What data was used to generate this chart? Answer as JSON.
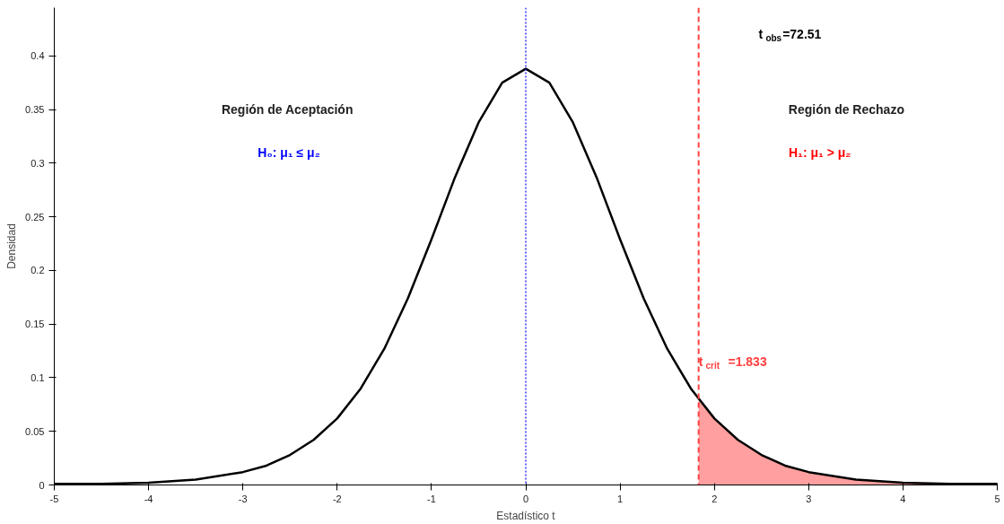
{
  "chart_data": {
    "type": "line",
    "xlabel": "Estadístico t",
    "ylabel": "Densidad",
    "series": [
      {
        "color": "#000000",
        "x": [
          -5,
          -4.5,
          -4,
          -3.5,
          -3,
          -2.75,
          -2.5,
          -2.25,
          -2,
          -1.75,
          -1.5,
          -1.25,
          -1,
          -0.75,
          -0.5,
          -0.25,
          0,
          0.25,
          0.5,
          0.75,
          1,
          1.25,
          1.5,
          1.75,
          2,
          2.25,
          2.5,
          2.75,
          3,
          3.5,
          4,
          4.5,
          5
        ],
        "values": [
          0.001,
          0.001,
          0.002,
          0.005,
          0.012,
          0.018,
          0.028,
          0.042,
          0.062,
          0.09,
          0.127,
          0.174,
          0.229,
          0.287,
          0.338,
          0.375,
          0.388,
          0.375,
          0.338,
          0.287,
          0.229,
          0.174,
          0.127,
          0.09,
          0.062,
          0.042,
          0.028,
          0.018,
          0.012,
          0.005,
          0.002,
          0.001,
          0.001
        ]
      },
      {
        "type": "area",
        "color": "#ff9f9f",
        "x": [
          1.833,
          2,
          2.25,
          2.5,
          2.75,
          3,
          3.5,
          4,
          4.5,
          5
        ],
        "values": [
          0.079,
          0.062,
          0.042,
          0.028,
          0.018,
          0.012,
          0.005,
          0.002,
          0.001,
          0.001
        ]
      }
    ],
    "xlim": [
      -5,
      5
    ],
    "ylim": [
      0,
      0.445
    ],
    "xticks": [
      -5,
      -4,
      -3,
      -2,
      -1,
      0,
      1,
      2,
      3,
      4,
      5
    ],
    "yticks": [
      0,
      0.05,
      0.1,
      0.15,
      0.2,
      0.25,
      0.3,
      0.35,
      0.4
    ],
    "ref_lines": [
      {
        "axis": "x",
        "value": 0,
        "color": "#0000ff",
        "line_style": "dotted"
      },
      {
        "axis": "x",
        "value": 1.833,
        "color": "#ff4040",
        "line_style": "dashed",
        "label": "t$_{crit}$=1.833"
      }
    ],
    "annotations": [
      {
        "text": "t$_{obs}$=72.51"
      },
      {
        "text": "Región de Aceptación"
      },
      {
        "text": "H₀:  μ₁  ≤  μ₂"
      },
      {
        "text": "Región de Rechazo"
      },
      {
        "text": "H₁:  μ₁  >  μ₂"
      }
    ],
    "tick_labels": "xy"
  }
}
